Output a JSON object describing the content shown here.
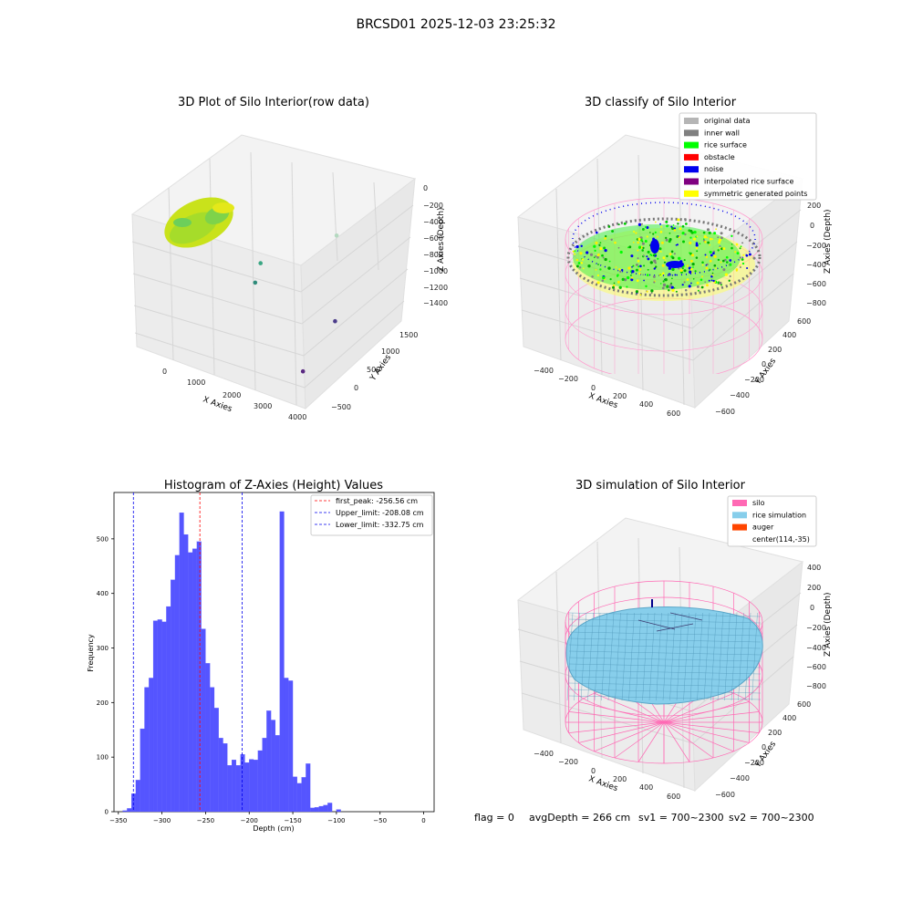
{
  "suptitle": "BRCSD01 2025-12-03 23:25:32",
  "footer": {
    "flag": "flag = 0",
    "avg": "avgDepth = 266 cm",
    "sv1": "sv1 = 700~2300",
    "sv2": "sv2 = 700~2300"
  },
  "chart_data": [
    {
      "type": "scatter",
      "title": "3D Plot of Silo Interior(row data)",
      "xlabel": "X Axies",
      "ylabel": "Y Axies",
      "zlabel": "Z Axies (Depth)",
      "x_ticks": [
        "0",
        "1000",
        "2000",
        "3000",
        "4000"
      ],
      "y_ticks": [
        "−500",
        "0",
        "500",
        "1000",
        "1500"
      ],
      "z_ticks": [
        "0",
        "−200",
        "−400",
        "−600",
        "−800",
        "−1000",
        "−1200",
        "−1400"
      ],
      "outliers": [
        {
          "x": 2600,
          "y": 1300,
          "z": -300
        },
        {
          "x": 1700,
          "y": 700,
          "z": -600
        },
        {
          "x": 1900,
          "y": 500,
          "z": -700
        },
        {
          "x": 3400,
          "y": 800,
          "z": -1000
        },
        {
          "x": 3600,
          "y": 200,
          "z": -1300
        }
      ]
    },
    {
      "type": "scatter",
      "title": "3D classify of Silo Interior",
      "xlabel": "X Axies",
      "ylabel": "Y Axies",
      "zlabel": "Z Axies (Depth)",
      "x_ticks": [
        "−400",
        "−200",
        "0",
        "200",
        "400",
        "600"
      ],
      "y_ticks": [
        "−600",
        "−400",
        "−200",
        "0",
        "200",
        "400",
        "600"
      ],
      "z_ticks": [
        "200",
        "0",
        "−200",
        "−400",
        "−600",
        "−800"
      ],
      "legend": [
        {
          "label": "original data",
          "color": "#b5b5b5"
        },
        {
          "label": "inner wall",
          "color": "#808080"
        },
        {
          "label": "rice surface",
          "color": "#00ff00"
        },
        {
          "label": "obstacle",
          "color": "#ff0000"
        },
        {
          "label": "noise",
          "color": "#0000ee"
        },
        {
          "label": "interpolated rice surface",
          "color": "#800080"
        },
        {
          "label": "symmetric generated points",
          "color": "#ffff00"
        }
      ]
    },
    {
      "type": "bar",
      "title": "Histogram of Z-Axies (Height) Values",
      "xlabel": "Depth (cm)",
      "ylabel": "Frequency",
      "xlim": [
        -355,
        12
      ],
      "ylim": [
        0,
        585
      ],
      "x_ticks": [
        -350,
        -300,
        -250,
        -200,
        -150,
        -100,
        -50,
        0
      ],
      "y_ticks": [
        0,
        100,
        200,
        300,
        400,
        500
      ],
      "bin_width": 5,
      "bins": [
        {
          "x": -345,
          "y": 2
        },
        {
          "x": -340,
          "y": 6
        },
        {
          "x": -335,
          "y": 33
        },
        {
          "x": -330,
          "y": 58
        },
        {
          "x": -325,
          "y": 152
        },
        {
          "x": -320,
          "y": 228
        },
        {
          "x": -315,
          "y": 245
        },
        {
          "x": -310,
          "y": 350
        },
        {
          "x": -305,
          "y": 352
        },
        {
          "x": -300,
          "y": 348
        },
        {
          "x": -295,
          "y": 376
        },
        {
          "x": -290,
          "y": 425
        },
        {
          "x": -285,
          "y": 470
        },
        {
          "x": -280,
          "y": 548
        },
        {
          "x": -275,
          "y": 508
        },
        {
          "x": -270,
          "y": 475
        },
        {
          "x": -265,
          "y": 482
        },
        {
          "x": -260,
          "y": 495
        },
        {
          "x": -255,
          "y": 335
        },
        {
          "x": -250,
          "y": 272
        },
        {
          "x": -245,
          "y": 228
        },
        {
          "x": -240,
          "y": 190
        },
        {
          "x": -235,
          "y": 135
        },
        {
          "x": -230,
          "y": 125
        },
        {
          "x": -225,
          "y": 85
        },
        {
          "x": -220,
          "y": 95
        },
        {
          "x": -215,
          "y": 85
        },
        {
          "x": -210,
          "y": 105
        },
        {
          "x": -205,
          "y": 90
        },
        {
          "x": -200,
          "y": 96
        },
        {
          "x": -195,
          "y": 95
        },
        {
          "x": -190,
          "y": 112
        },
        {
          "x": -185,
          "y": 135
        },
        {
          "x": -180,
          "y": 185
        },
        {
          "x": -175,
          "y": 168
        },
        {
          "x": -170,
          "y": 140
        },
        {
          "x": -165,
          "y": 550
        },
        {
          "x": -160,
          "y": 245
        },
        {
          "x": -155,
          "y": 240
        },
        {
          "x": -150,
          "y": 64
        },
        {
          "x": -145,
          "y": 52
        },
        {
          "x": -140,
          "y": 63
        },
        {
          "x": -135,
          "y": 88
        },
        {
          "x": -130,
          "y": 7
        },
        {
          "x": -125,
          "y": 8
        },
        {
          "x": -120,
          "y": 10
        },
        {
          "x": -115,
          "y": 12
        },
        {
          "x": -110,
          "y": 16
        },
        {
          "x": -105,
          "y": 0
        },
        {
          "x": -100,
          "y": 4
        }
      ],
      "vlines": [
        {
          "x": -256.56,
          "color": "#ff0000",
          "label": "first_peak: -256.56 cm"
        },
        {
          "x": -208.08,
          "color": "#0000ee",
          "label": "Upper_limit: -208.08 cm"
        },
        {
          "x": -332.75,
          "color": "#0000ee",
          "label": "Lower_limit: -332.75 cm"
        }
      ]
    },
    {
      "type": "surface",
      "title": "3D simulation of Silo Interior",
      "xlabel": "X Axies",
      "ylabel": "Y Axies",
      "zlabel": "Z Axies (Depth)",
      "x_ticks": [
        "−400",
        "−200",
        "0",
        "200",
        "400",
        "600"
      ],
      "y_ticks": [
        "−600",
        "−400",
        "−200",
        "0",
        "200",
        "400",
        "600"
      ],
      "z_ticks": [
        "400",
        "200",
        "0",
        "−200",
        "−400",
        "−600",
        "−800"
      ],
      "legend": [
        {
          "label": "silo",
          "color": "#ff69b4"
        },
        {
          "label": "rice simulation",
          "color": "#87ceeb"
        },
        {
          "label": "auger",
          "color": "#ff4500"
        },
        {
          "label": "center(114,-35)",
          "color": ""
        }
      ]
    }
  ]
}
